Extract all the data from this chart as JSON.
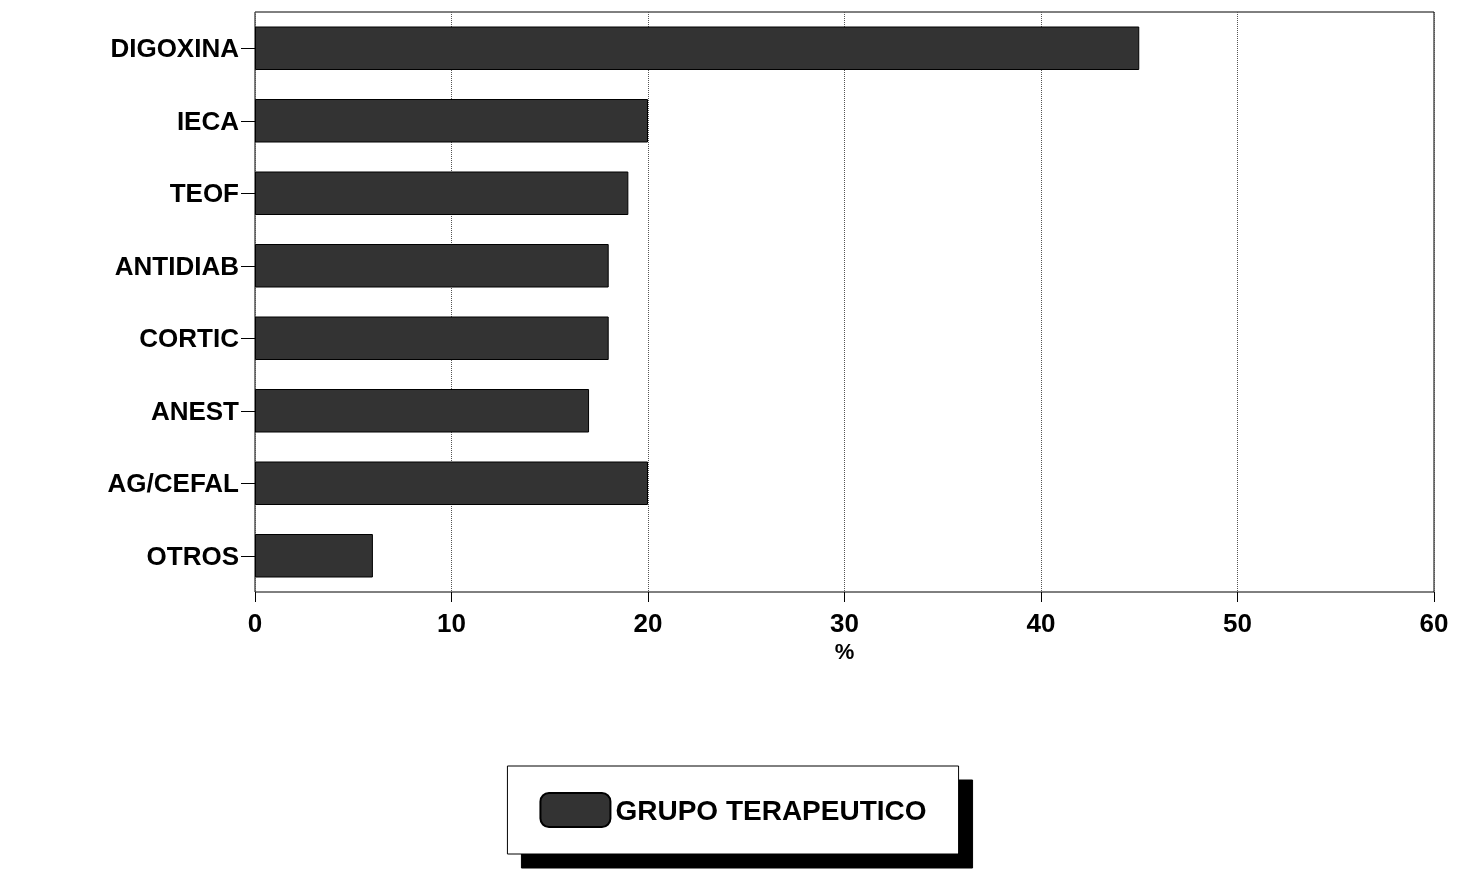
{
  "chart_data": {
    "type": "bar",
    "orientation": "horizontal",
    "xlabel": "%",
    "categories": [
      "DIGOXINA",
      "IECA",
      "TEOF",
      "ANTIDIAB",
      "CORTIC",
      "ANEST",
      "AG/CEFAL",
      "OTROS"
    ],
    "series": [
      {
        "name": "GRUPO TERAPEUTICO",
        "color": "#333333",
        "values": [
          45,
          20,
          19,
          18,
          18,
          17,
          20,
          6
        ]
      }
    ],
    "xlim": [
      0,
      60
    ],
    "xticks": [
      0,
      10,
      20,
      30,
      40,
      50,
      60
    ],
    "grid": "x",
    "legend": "bottom"
  }
}
